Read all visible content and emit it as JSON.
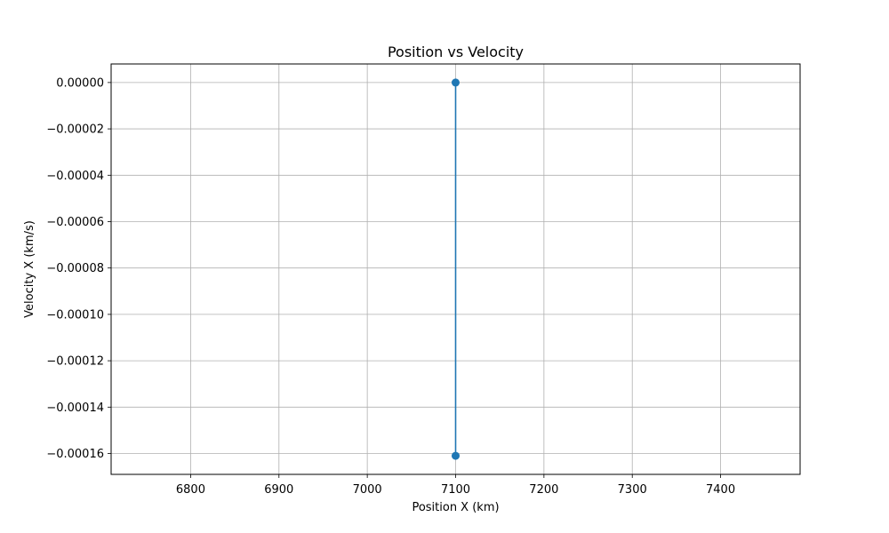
{
  "chart_data": {
    "type": "line",
    "title": "Position vs Velocity",
    "xlabel": "Position X (km)",
    "ylabel": "Velocity X (km/s)",
    "xlim": [
      6710,
      7490
    ],
    "ylim": [
      -0.000169,
      8e-06
    ],
    "xticks": [
      6800,
      6900,
      7000,
      7100,
      7200,
      7300,
      7400
    ],
    "xtick_labels": [
      "6800",
      "6900",
      "7000",
      "7100",
      "7200",
      "7300",
      "7400"
    ],
    "yticks": [
      0,
      -2e-05,
      -4e-05,
      -6e-05,
      -8e-05,
      -0.0001,
      -0.00012,
      -0.00014,
      -0.00016
    ],
    "ytick_labels": [
      "0.00000",
      "−0.00002",
      "−0.00004",
      "−0.00006",
      "−0.00008",
      "−0.00010",
      "−0.00012",
      "−0.00014",
      "−0.00016"
    ],
    "grid": true,
    "series": [
      {
        "color": "#1f77b4",
        "marker": "circle",
        "x": [
          7100,
          7100
        ],
        "y": [
          0,
          -0.000161
        ]
      }
    ]
  }
}
